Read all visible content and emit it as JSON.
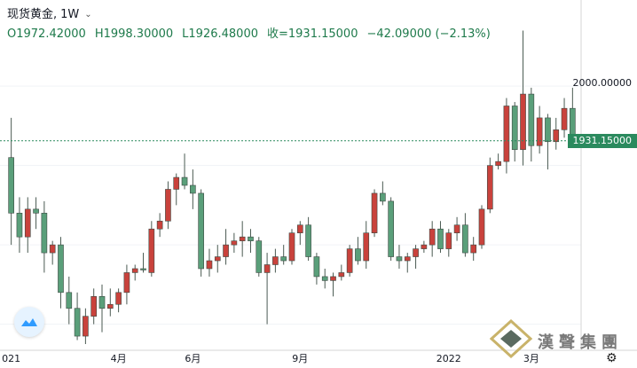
{
  "legend": {
    "symbol": "现货黄金,",
    "interval": "1W",
    "open": "O1972.42000",
    "high": "H1998.30000",
    "low": "L1926.48000",
    "close": "收=1931.15000",
    "change": "−42.09000 (−2.13%)"
  },
  "axis": {
    "price_label_2000": "2000.00000",
    "current_price": "1931.15000",
    "x_ticks": [
      "021",
      "4月",
      "6月",
      "9月",
      "2022",
      "3月"
    ]
  },
  "watermark": {
    "text": "漢聲集團"
  },
  "colors": {
    "up": "#ef5350",
    "down": "#26a69a",
    "up_fill": "#c9423c",
    "down_fill": "#5a9f7a",
    "current_price_bg": "#2b8a5e"
  },
  "chart_data": {
    "type": "candlestick",
    "title": "",
    "ylim": [
      1675,
      2075
    ],
    "candles": [
      {
        "o": 1910,
        "h": 1960,
        "l": 1800,
        "c": 1840,
        "dir": "down"
      },
      {
        "o": 1840,
        "h": 1860,
        "l": 1790,
        "c": 1810,
        "dir": "down"
      },
      {
        "o": 1810,
        "h": 1860,
        "l": 1790,
        "c": 1845,
        "dir": "up"
      },
      {
        "o": 1845,
        "h": 1860,
        "l": 1820,
        "c": 1840,
        "dir": "down"
      },
      {
        "o": 1840,
        "h": 1855,
        "l": 1765,
        "c": 1790,
        "dir": "down"
      },
      {
        "o": 1790,
        "h": 1805,
        "l": 1775,
        "c": 1800,
        "dir": "up"
      },
      {
        "o": 1800,
        "h": 1810,
        "l": 1720,
        "c": 1740,
        "dir": "down"
      },
      {
        "o": 1740,
        "h": 1760,
        "l": 1700,
        "c": 1720,
        "dir": "down"
      },
      {
        "o": 1720,
        "h": 1740,
        "l": 1680,
        "c": 1685,
        "dir": "down"
      },
      {
        "o": 1685,
        "h": 1720,
        "l": 1675,
        "c": 1710,
        "dir": "up"
      },
      {
        "o": 1710,
        "h": 1745,
        "l": 1700,
        "c": 1735,
        "dir": "up"
      },
      {
        "o": 1735,
        "h": 1750,
        "l": 1690,
        "c": 1720,
        "dir": "down"
      },
      {
        "o": 1720,
        "h": 1745,
        "l": 1710,
        "c": 1725,
        "dir": "up"
      },
      {
        "o": 1725,
        "h": 1745,
        "l": 1715,
        "c": 1740,
        "dir": "up"
      },
      {
        "o": 1740,
        "h": 1775,
        "l": 1725,
        "c": 1765,
        "dir": "up"
      },
      {
        "o": 1765,
        "h": 1775,
        "l": 1755,
        "c": 1770,
        "dir": "up"
      },
      {
        "o": 1770,
        "h": 1790,
        "l": 1765,
        "c": 1770,
        "dir": "down"
      },
      {
        "o": 1765,
        "h": 1830,
        "l": 1760,
        "c": 1820,
        "dir": "up"
      },
      {
        "o": 1820,
        "h": 1840,
        "l": 1810,
        "c": 1830,
        "dir": "up"
      },
      {
        "o": 1830,
        "h": 1880,
        "l": 1820,
        "c": 1870,
        "dir": "up"
      },
      {
        "o": 1870,
        "h": 1890,
        "l": 1850,
        "c": 1885,
        "dir": "up"
      },
      {
        "o": 1885,
        "h": 1915,
        "l": 1870,
        "c": 1875,
        "dir": "down"
      },
      {
        "o": 1875,
        "h": 1895,
        "l": 1845,
        "c": 1865,
        "dir": "down"
      },
      {
        "o": 1865,
        "h": 1870,
        "l": 1760,
        "c": 1770,
        "dir": "down"
      },
      {
        "o": 1770,
        "h": 1795,
        "l": 1760,
        "c": 1780,
        "dir": "up"
      },
      {
        "o": 1780,
        "h": 1800,
        "l": 1765,
        "c": 1785,
        "dir": "up"
      },
      {
        "o": 1785,
        "h": 1820,
        "l": 1775,
        "c": 1800,
        "dir": "up"
      },
      {
        "o": 1800,
        "h": 1815,
        "l": 1790,
        "c": 1805,
        "dir": "up"
      },
      {
        "o": 1805,
        "h": 1830,
        "l": 1785,
        "c": 1810,
        "dir": "up"
      },
      {
        "o": 1810,
        "h": 1820,
        "l": 1790,
        "c": 1805,
        "dir": "down"
      },
      {
        "o": 1805,
        "h": 1810,
        "l": 1760,
        "c": 1765,
        "dir": "down"
      },
      {
        "o": 1765,
        "h": 1790,
        "l": 1700,
        "c": 1775,
        "dir": "up"
      },
      {
        "o": 1775,
        "h": 1795,
        "l": 1765,
        "c": 1785,
        "dir": "up"
      },
      {
        "o": 1785,
        "h": 1800,
        "l": 1775,
        "c": 1780,
        "dir": "down"
      },
      {
        "o": 1780,
        "h": 1820,
        "l": 1775,
        "c": 1815,
        "dir": "up"
      },
      {
        "o": 1815,
        "h": 1830,
        "l": 1800,
        "c": 1825,
        "dir": "up"
      },
      {
        "o": 1825,
        "h": 1835,
        "l": 1780,
        "c": 1785,
        "dir": "down"
      },
      {
        "o": 1785,
        "h": 1790,
        "l": 1750,
        "c": 1760,
        "dir": "down"
      },
      {
        "o": 1760,
        "h": 1770,
        "l": 1745,
        "c": 1755,
        "dir": "down"
      },
      {
        "o": 1755,
        "h": 1765,
        "l": 1735,
        "c": 1760,
        "dir": "up"
      },
      {
        "o": 1760,
        "h": 1775,
        "l": 1755,
        "c": 1765,
        "dir": "up"
      },
      {
        "o": 1765,
        "h": 1800,
        "l": 1760,
        "c": 1795,
        "dir": "up"
      },
      {
        "o": 1795,
        "h": 1810,
        "l": 1775,
        "c": 1780,
        "dir": "down"
      },
      {
        "o": 1780,
        "h": 1830,
        "l": 1770,
        "c": 1815,
        "dir": "up"
      },
      {
        "o": 1815,
        "h": 1870,
        "l": 1810,
        "c": 1865,
        "dir": "up"
      },
      {
        "o": 1865,
        "h": 1880,
        "l": 1850,
        "c": 1855,
        "dir": "down"
      },
      {
        "o": 1855,
        "h": 1860,
        "l": 1780,
        "c": 1785,
        "dir": "down"
      },
      {
        "o": 1785,
        "h": 1800,
        "l": 1770,
        "c": 1780,
        "dir": "down"
      },
      {
        "o": 1780,
        "h": 1790,
        "l": 1765,
        "c": 1785,
        "dir": "up"
      },
      {
        "o": 1785,
        "h": 1800,
        "l": 1770,
        "c": 1795,
        "dir": "up"
      },
      {
        "o": 1795,
        "h": 1805,
        "l": 1790,
        "c": 1800,
        "dir": "up"
      },
      {
        "o": 1800,
        "h": 1830,
        "l": 1785,
        "c": 1820,
        "dir": "up"
      },
      {
        "o": 1820,
        "h": 1830,
        "l": 1790,
        "c": 1795,
        "dir": "down"
      },
      {
        "o": 1795,
        "h": 1820,
        "l": 1785,
        "c": 1815,
        "dir": "up"
      },
      {
        "o": 1815,
        "h": 1835,
        "l": 1805,
        "c": 1825,
        "dir": "up"
      },
      {
        "o": 1825,
        "h": 1840,
        "l": 1785,
        "c": 1790,
        "dir": "down"
      },
      {
        "o": 1790,
        "h": 1810,
        "l": 1780,
        "c": 1800,
        "dir": "up"
      },
      {
        "o": 1800,
        "h": 1850,
        "l": 1795,
        "c": 1845,
        "dir": "up"
      },
      {
        "o": 1845,
        "h": 1910,
        "l": 1840,
        "c": 1900,
        "dir": "up"
      },
      {
        "o": 1900,
        "h": 1915,
        "l": 1895,
        "c": 1905,
        "dir": "up"
      },
      {
        "o": 1905,
        "h": 1985,
        "l": 1890,
        "c": 1975,
        "dir": "up"
      },
      {
        "o": 1975,
        "h": 1980,
        "l": 1905,
        "c": 1920,
        "dir": "down"
      },
      {
        "o": 1920,
        "h": 2070,
        "l": 1900,
        "c": 1990,
        "dir": "up"
      },
      {
        "o": 1990,
        "h": 1998,
        "l": 1905,
        "c": 1925,
        "dir": "down"
      },
      {
        "o": 1925,
        "h": 1975,
        "l": 1915,
        "c": 1960,
        "dir": "up"
      },
      {
        "o": 1960,
        "h": 1965,
        "l": 1895,
        "c": 1930,
        "dir": "down"
      },
      {
        "o": 1930,
        "h": 1960,
        "l": 1920,
        "c": 1945,
        "dir": "up"
      },
      {
        "o": 1945,
        "h": 1985,
        "l": 1935,
        "c": 1972,
        "dir": "up"
      },
      {
        "o": 1972,
        "h": 1998,
        "l": 1926,
        "c": 1931,
        "dir": "down"
      }
    ],
    "current_price": 1931.15,
    "grid": true
  }
}
